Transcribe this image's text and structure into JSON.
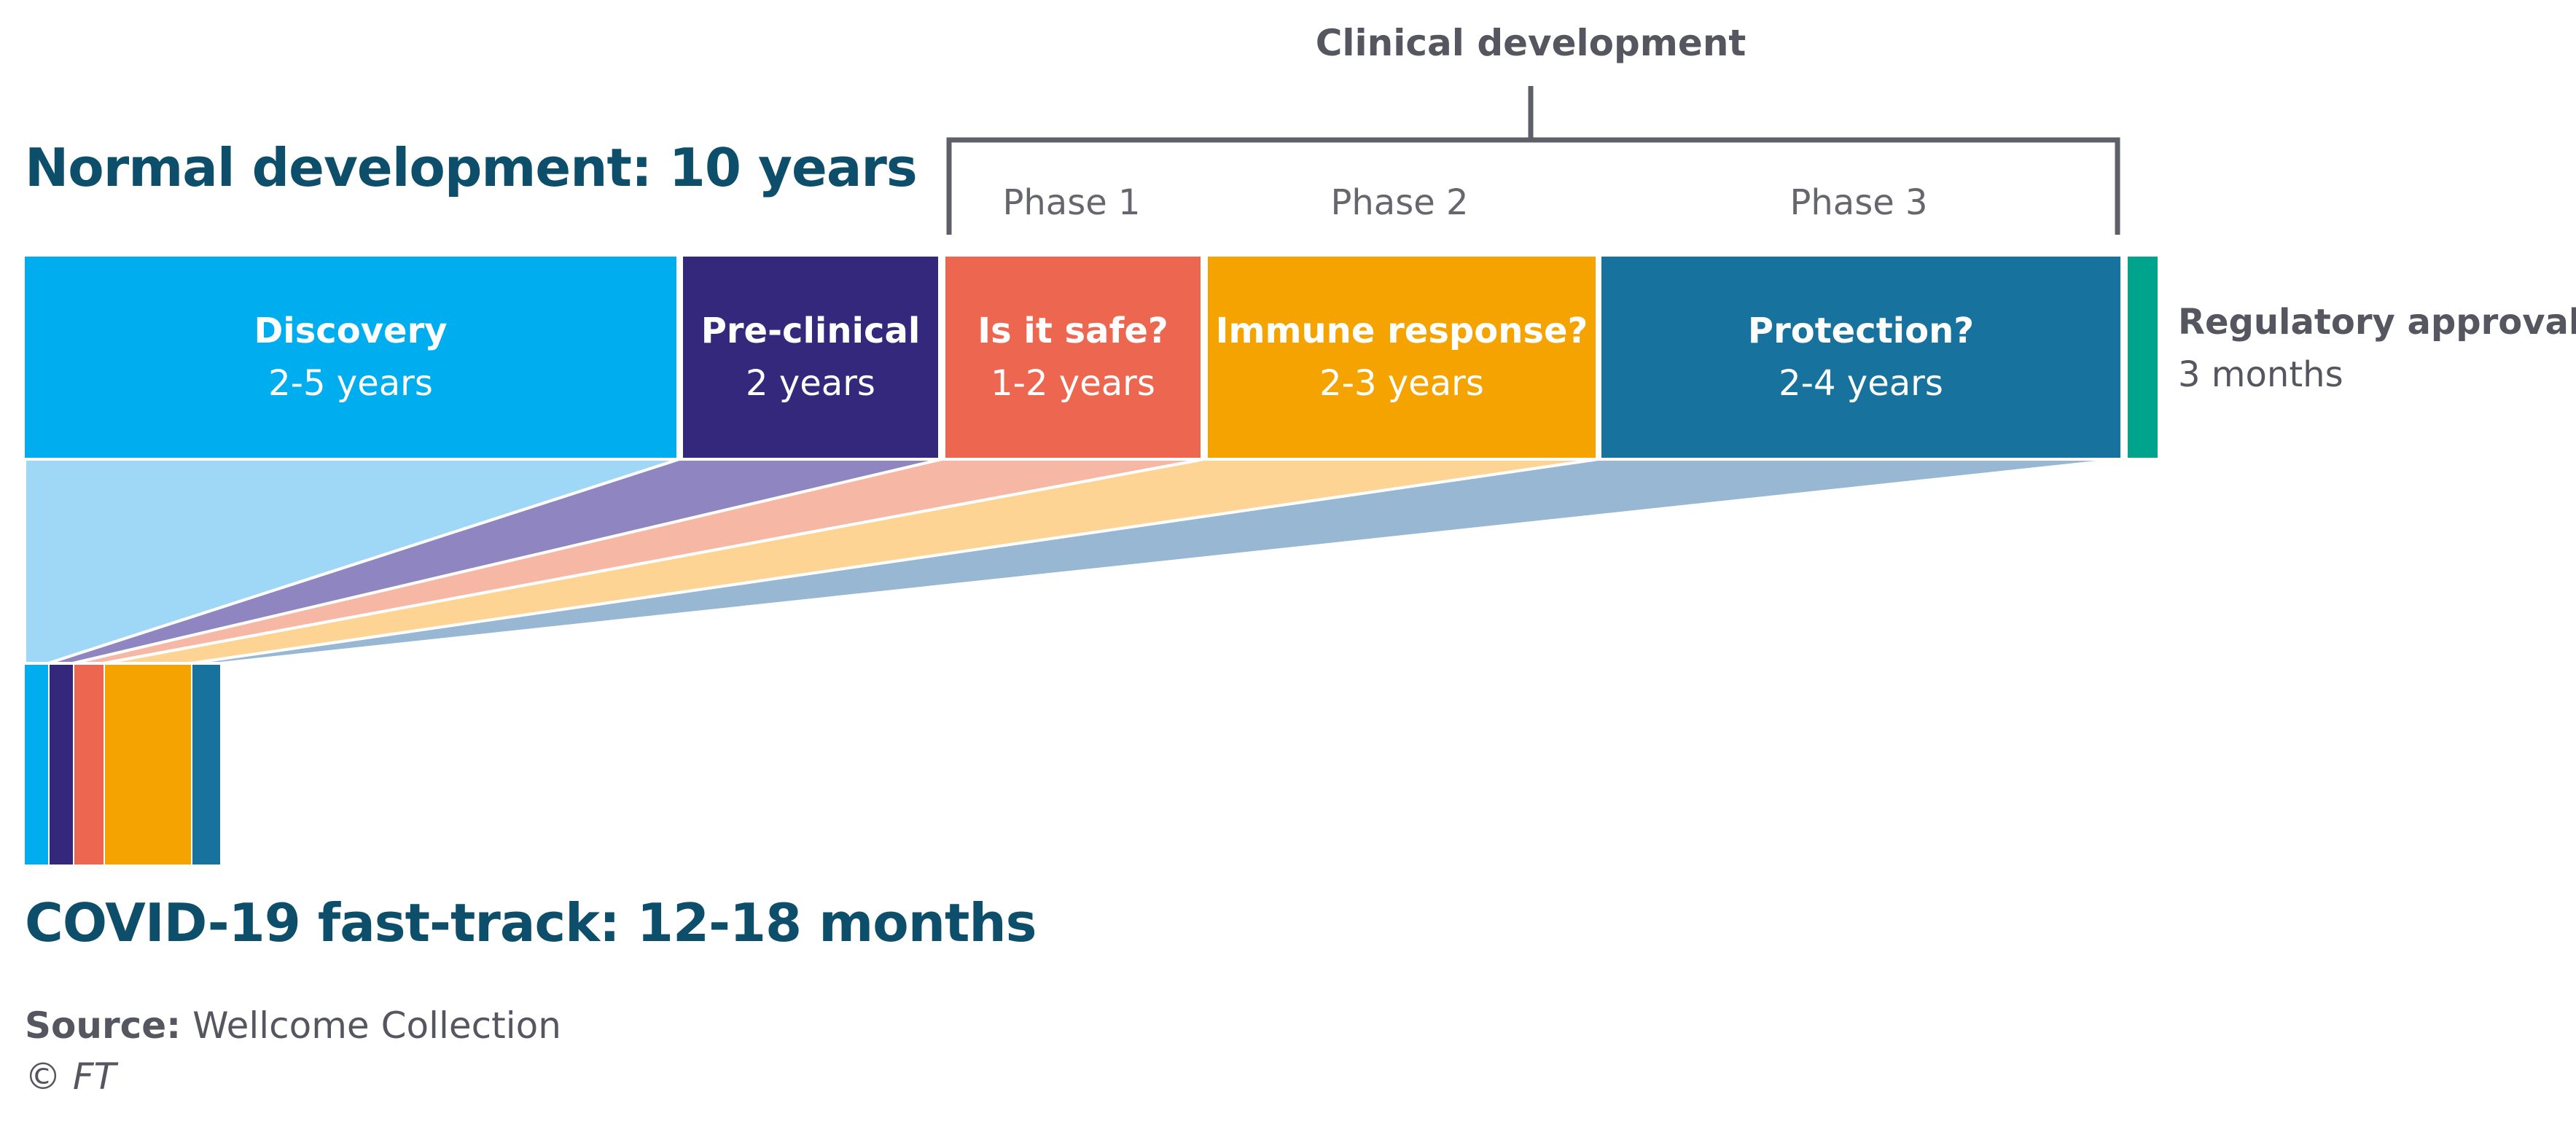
{
  "normal_title": "Normal development: 10 years",
  "fast_title": "COVID-19 fast-track: 12-18 months",
  "clinical": {
    "title": "Clinical development",
    "phases": [
      "Phase 1",
      "Phase 2",
      "Phase 3"
    ]
  },
  "stages": [
    {
      "title": "Discovery",
      "duration": "2-5 years",
      "color": "#00aeef",
      "light": "#9ed8f6"
    },
    {
      "title": "Pre-clinical",
      "duration": "2 years",
      "color": "#33287c",
      "light": "#8f85c1"
    },
    {
      "title": "Is it safe?",
      "duration": "1-2 years",
      "color": "#ed6750",
      "light": "#f6b8a5"
    },
    {
      "title": "Immune response?",
      "duration": "2-3 years",
      "color": "#f5a300",
      "light": "#fdd494"
    },
    {
      "title": "Protection?",
      "duration": "2-4 years",
      "color": "#17739e",
      "light": "#97b7d2"
    }
  ],
  "regulatory": {
    "title": "Regulatory approval",
    "duration": "3 months",
    "color": "#00a38c"
  },
  "source": {
    "label": "Source:",
    "text": "Wellcome Collection"
  },
  "copyright": "© FT"
}
